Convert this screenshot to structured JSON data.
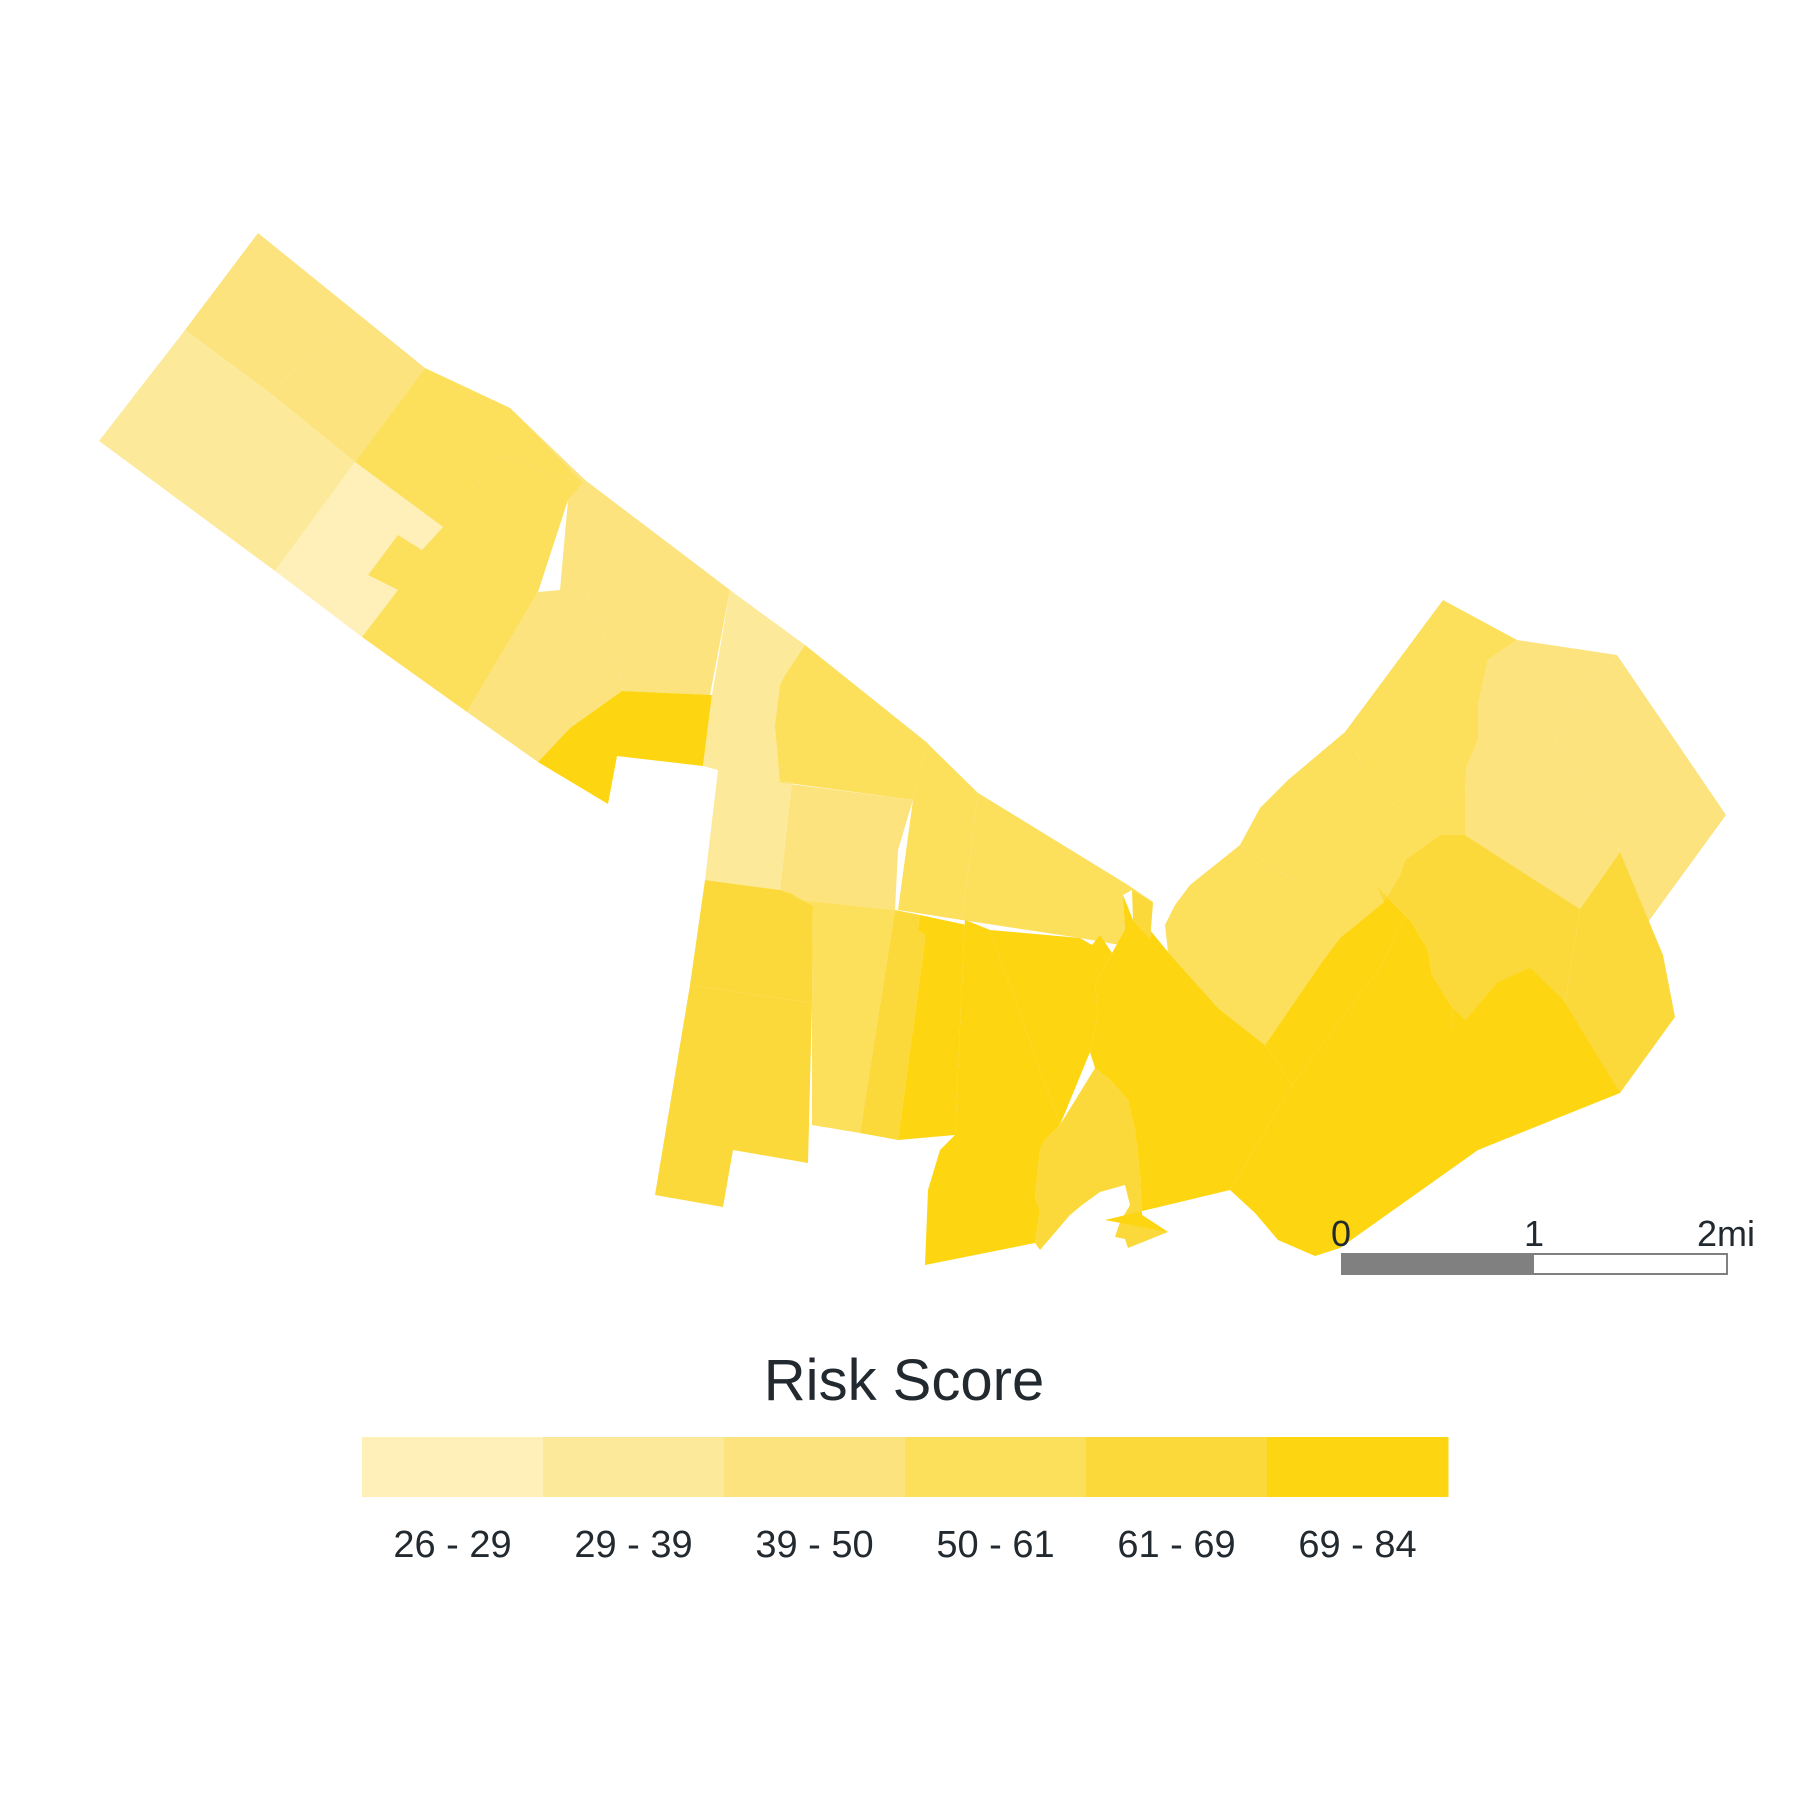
{
  "legend": {
    "title": "Risk Score",
    "classes": [
      {
        "label": "26 - 29",
        "color": "#fef0b8"
      },
      {
        "label": "29 - 39",
        "color": "#fde99a"
      },
      {
        "label": "39 - 50",
        "color": "#fce37e"
      },
      {
        "label": "50 - 61",
        "color": "#fcdf5b"
      },
      {
        "label": "61 - 69",
        "color": "#fcd93a"
      },
      {
        "label": "69 - 84",
        "color": "#fdd511"
      }
    ]
  },
  "scale_bar": {
    "labels": [
      "0",
      "1",
      "2mi"
    ],
    "fill_color": "#808080",
    "outline_color": "#808080"
  }
}
